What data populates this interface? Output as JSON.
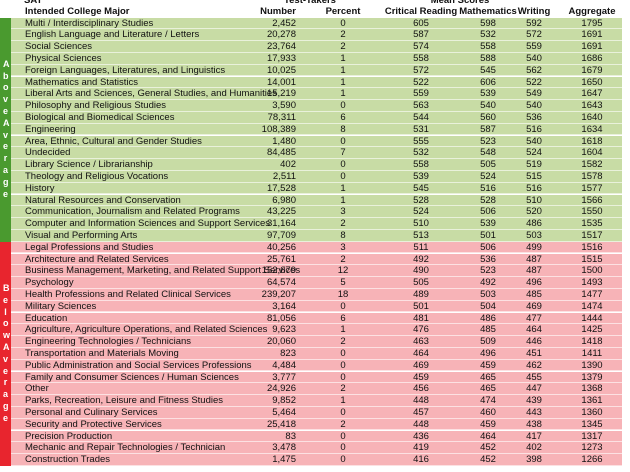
{
  "header": {
    "top": [
      "SAT",
      "Test-Takers",
      "Mean Scores"
    ],
    "columns": [
      "Intended College Major",
      "Number",
      "Percent",
      "Critical Reading",
      "Mathematics",
      "Writing",
      "Aggregate"
    ]
  },
  "groups": [
    {
      "label": "Above Average",
      "rows": [
        [
          "Multi / Interdisciplinary Studies",
          "2,452",
          "0",
          "605",
          "598",
          "592",
          "1795"
        ],
        [
          "English Language and Literature / Letters",
          "20,278",
          "2",
          "587",
          "532",
          "572",
          "1691"
        ],
        [
          "Social Sciences",
          "23,764",
          "2",
          "574",
          "558",
          "559",
          "1691"
        ],
        [
          "Physical Sciences",
          "17,933",
          "1",
          "558",
          "588",
          "540",
          "1686"
        ],
        [
          "Foreign Languages, Literatures, and Linguistics",
          "10,025",
          "1",
          "572",
          "545",
          "562",
          "1679"
        ],
        [
          "Mathematics and Statistics",
          "14,001",
          "1",
          "522",
          "606",
          "522",
          "1650"
        ],
        [
          "Liberal Arts and Sciences, General Studies, and Humanities",
          "15,219",
          "1",
          "559",
          "539",
          "549",
          "1647"
        ],
        [
          "Philosophy and Religious Studies",
          "3,590",
          "0",
          "563",
          "540",
          "540",
          "1643"
        ],
        [
          "Biological and Biomedical Sciences",
          "78,311",
          "6",
          "544",
          "560",
          "536",
          "1640"
        ],
        [
          "Engineering",
          "108,389",
          "8",
          "531",
          "587",
          "516",
          "1634"
        ],
        [
          "Area, Ethnic, Cultural and Gender Studies",
          "1,480",
          "0",
          "555",
          "523",
          "540",
          "1618"
        ],
        [
          "Undecided",
          "84,485",
          "7",
          "532",
          "548",
          "524",
          "1604"
        ],
        [
          "Library Science / Librarianship",
          "402",
          "0",
          "558",
          "505",
          "519",
          "1582"
        ],
        [
          "Theology and Religious Vocations",
          "2,511",
          "0",
          "539",
          "524",
          "515",
          "1578"
        ],
        [
          "History",
          "17,528",
          "1",
          "545",
          "516",
          "516",
          "1577"
        ],
        [
          "Natural Resources and Conservation",
          "6,980",
          "1",
          "528",
          "528",
          "510",
          "1566"
        ],
        [
          "Communication, Journalism and Related Programs",
          "43,225",
          "3",
          "524",
          "506",
          "520",
          "1550"
        ],
        [
          "Computer and Information Sciences and Support Services",
          "31,164",
          "2",
          "510",
          "539",
          "486",
          "1535"
        ],
        [
          "Visual and Performing Arts",
          "97,709",
          "8",
          "513",
          "501",
          "503",
          "1517"
        ]
      ]
    },
    {
      "label": "Below Average",
      "rows": [
        [
          "Legal Professions and Studies",
          "40,256",
          "3",
          "511",
          "506",
          "499",
          "1516"
        ],
        [
          "Architecture and Related Services",
          "25,761",
          "2",
          "492",
          "536",
          "487",
          "1515"
        ],
        [
          "Business Management, Marketing, and Related Support Services",
          "152,679",
          "12",
          "490",
          "523",
          "487",
          "1500"
        ],
        [
          "Psychology",
          "64,574",
          "5",
          "505",
          "492",
          "496",
          "1493"
        ],
        [
          "Health Professions and Related Clinical Services",
          "239,207",
          "18",
          "489",
          "503",
          "485",
          "1477"
        ],
        [
          "Military Sciences",
          "3,164",
          "0",
          "501",
          "504",
          "469",
          "1474"
        ],
        [
          "Education",
          "81,056",
          "6",
          "481",
          "486",
          "477",
          "1444"
        ],
        [
          "Agriculture, Agriculture Operations, and Related Sciences",
          "9,623",
          "1",
          "476",
          "485",
          "464",
          "1425"
        ],
        [
          "Engineering Technologies / Technicians",
          "20,060",
          "2",
          "463",
          "509",
          "446",
          "1418"
        ],
        [
          "Transportation and Materials Moving",
          "823",
          "0",
          "464",
          "496",
          "451",
          "1411"
        ],
        [
          "Public Administration and Social Services Professions",
          "4,484",
          "0",
          "469",
          "459",
          "462",
          "1390"
        ],
        [
          "Family and Consumer Sciences / Human Sciences",
          "3,777",
          "0",
          "459",
          "465",
          "455",
          "1379"
        ],
        [
          "Other",
          "24,926",
          "2",
          "456",
          "465",
          "447",
          "1368"
        ],
        [
          "Parks, Recreation, Leisure and Fitness Studies",
          "9,852",
          "1",
          "448",
          "474",
          "439",
          "1361"
        ],
        [
          "Personal and Culinary Services",
          "5,464",
          "0",
          "457",
          "460",
          "443",
          "1360"
        ],
        [
          "Security and Protective Services",
          "25,418",
          "2",
          "448",
          "459",
          "438",
          "1345"
        ],
        [
          "Precision Production",
          "83",
          "0",
          "436",
          "464",
          "417",
          "1317"
        ],
        [
          "Mechanic and Repair Technologies / Technician",
          "3,478",
          "0",
          "419",
          "452",
          "402",
          "1273"
        ],
        [
          "Construction Trades",
          "1,475",
          "0",
          "416",
          "452",
          "398",
          "1266"
        ]
      ]
    }
  ]
}
